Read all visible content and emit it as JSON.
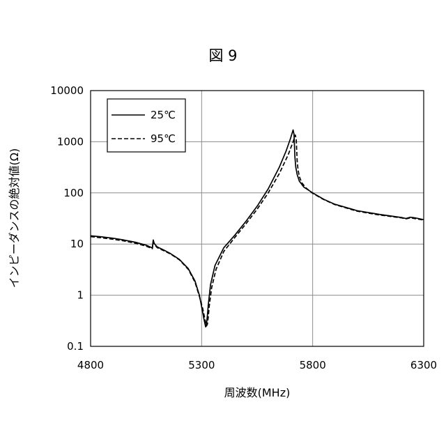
{
  "chart_data": {
    "type": "line",
    "title": "図 9",
    "xlabel": "周波数(MHz)",
    "ylabel": "インピーダンスの絶対値(Ω)",
    "xlim": [
      4800,
      6300
    ],
    "ylim": [
      0.1,
      10000
    ],
    "y_scale": "log",
    "grid": true,
    "legend_position": "top-left",
    "x_ticks": [
      "4800",
      "5300",
      "5800",
      "6300"
    ],
    "y_ticks": [
      "10000",
      "1000",
      "100",
      "10",
      "1",
      "0.1"
    ],
    "x_tick_values": [
      4800,
      5300,
      5800,
      6300
    ],
    "y_tick_values": [
      10000,
      1000,
      100,
      10,
      1,
      0.1
    ],
    "series": [
      {
        "name": "25℃",
        "style": "solid",
        "x": [
          4800,
          4850,
          4900,
          4950,
          5000,
          5050,
          5078,
          5082,
          5086,
          5090,
          5095,
          5100,
          5130,
          5160,
          5200,
          5240,
          5270,
          5290,
          5300,
          5310,
          5318,
          5322,
          5326,
          5330,
          5340,
          5360,
          5400,
          5450,
          5500,
          5550,
          5600,
          5650,
          5680,
          5700,
          5712,
          5716,
          5720,
          5724,
          5730,
          5740,
          5760,
          5800,
          5850,
          5900,
          6000,
          6100,
          6200,
          6220,
          6240,
          6260,
          6300
        ],
        "y": [
          14.5,
          13.8,
          13.0,
          12.0,
          10.9,
          9.5,
          8.4,
          12.0,
          10.5,
          9.8,
          9.3,
          8.8,
          7.6,
          6.5,
          5.0,
          3.3,
          1.9,
          1.0,
          0.6,
          0.35,
          0.24,
          0.27,
          0.4,
          0.65,
          1.6,
          3.8,
          8.5,
          15,
          28,
          55,
          120,
          320,
          650,
          1150,
          1700,
          1400,
          500,
          320,
          230,
          170,
          130,
          100,
          75,
          60,
          45,
          38,
          33,
          31.5,
          33.5,
          32.5,
          30
        ]
      },
      {
        "name": "95℃",
        "style": "dashed",
        "x": [
          4800,
          4850,
          4900,
          4950,
          5000,
          5050,
          5078,
          5082,
          5086,
          5090,
          5095,
          5100,
          5130,
          5160,
          5200,
          5240,
          5270,
          5290,
          5305,
          5315,
          5322,
          5326,
          5330,
          5334,
          5345,
          5365,
          5400,
          5450,
          5500,
          5550,
          5600,
          5650,
          5690,
          5712,
          5722,
          5726,
          5730,
          5734,
          5740,
          5750,
          5770,
          5800,
          5850,
          5900,
          6000,
          6100,
          6200,
          6220,
          6240,
          6260,
          6300
        ],
        "y": [
          14.0,
          13.2,
          12.4,
          11.5,
          10.4,
          9.1,
          8.1,
          11.2,
          10.0,
          9.5,
          9.0,
          8.5,
          7.4,
          6.4,
          4.9,
          3.2,
          1.8,
          0.95,
          0.55,
          0.34,
          0.25,
          0.27,
          0.38,
          0.6,
          1.4,
          3.2,
          7.2,
          13.5,
          25,
          48,
          100,
          240,
          560,
          1000,
          1350,
          1100,
          430,
          290,
          210,
          160,
          125,
          98,
          74,
          59,
          44,
          37,
          32.5,
          31,
          32.5,
          31.5,
          29.5
        ]
      }
    ]
  }
}
